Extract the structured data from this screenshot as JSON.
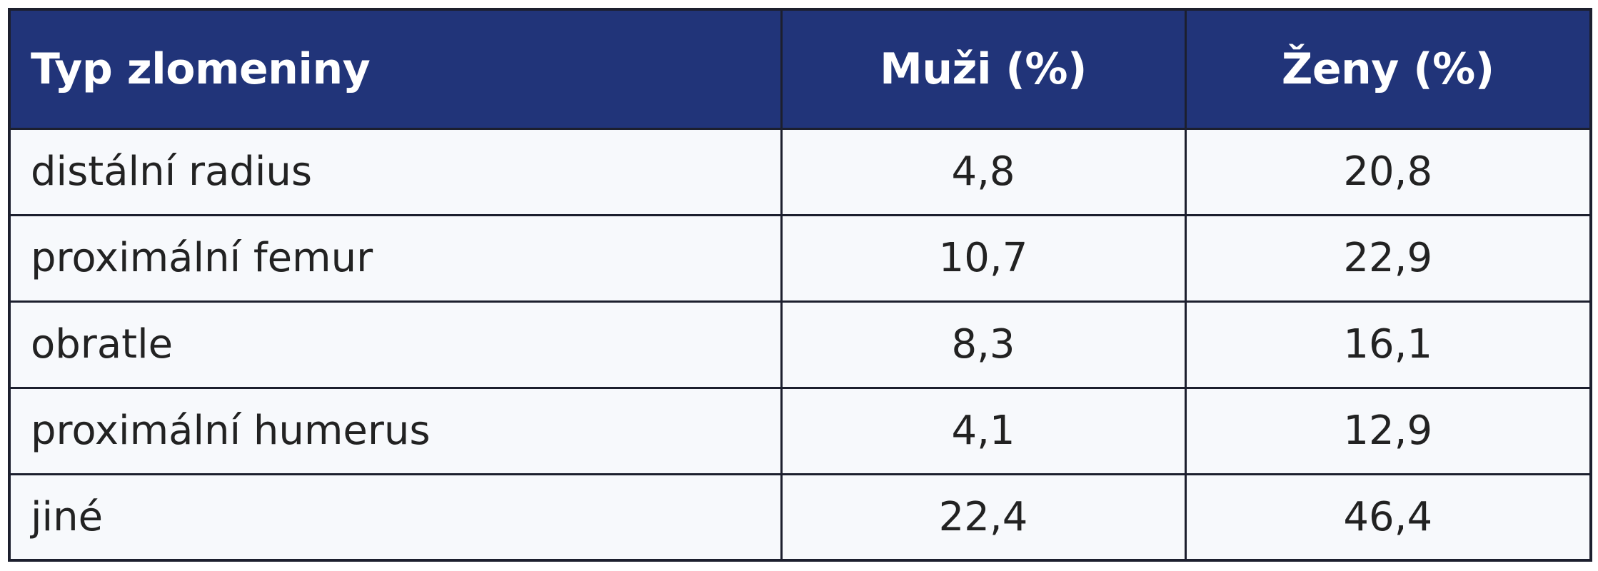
{
  "table": {
    "header": [
      "Typ zlomeniny",
      "Muži (%)",
      "Ženy (%)"
    ],
    "rows": [
      [
        "distální radius",
        "4,8",
        "20,8"
      ],
      [
        "proximální femur",
        "10,7",
        "22,9"
      ],
      [
        "obratle",
        "8,3",
        "16,1"
      ],
      [
        "proximální humerus",
        "4,1",
        "12,9"
      ],
      [
        "jiné",
        "22,4",
        "46,4"
      ]
    ]
  }
}
